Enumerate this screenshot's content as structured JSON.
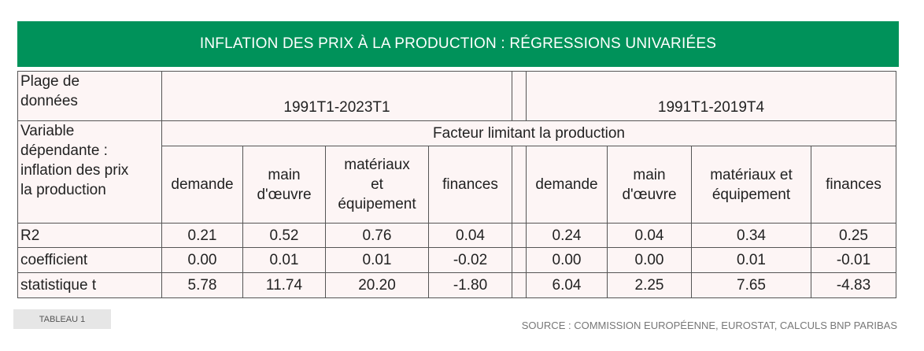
{
  "title": "INFLATION DES PRIX À LA PRODUCTION : RÉGRESSIONS UNIVARIÉES",
  "header": {
    "range_label": [
      "Plage de",
      "données"
    ],
    "range_1": "1991T1-2023T1",
    "range_2": "1991T1-2019T4",
    "dep_label": [
      "Variable",
      "dépendante :",
      "inflation des prix",
      "la production"
    ],
    "factor_group": "Facteur limitant la production",
    "cols_1": [
      [
        "demande"
      ],
      [
        "main",
        "d'œuvre"
      ],
      [
        "matériaux",
        "et",
        "équipement"
      ],
      [
        "finances"
      ]
    ],
    "cols_2": [
      [
        "demande"
      ],
      [
        "main",
        "d'œuvre"
      ],
      [
        "matériaux et",
        "équipement"
      ],
      [
        "finances"
      ]
    ]
  },
  "rows": [
    {
      "label": "R2",
      "v1": [
        "0.21",
        "0.52",
        "0.76",
        "0.04"
      ],
      "v2": [
        "0.24",
        "0.04",
        "0.34",
        "0.25"
      ]
    },
    {
      "label": "coefficient",
      "v1": [
        "0.00",
        "0.01",
        "0.01",
        "-0.02"
      ],
      "v2": [
        "0.00",
        "0.00",
        "0.01",
        "-0.01"
      ]
    },
    {
      "label": "statistique t",
      "v1": [
        "5.78",
        "11.74",
        "20.20",
        "-1.80"
      ],
      "v2": [
        "6.04",
        "2.25",
        "7.65",
        "-4.83"
      ]
    }
  ],
  "footer": {
    "tag": "TABLEAU 1",
    "source": "SOURCE : COMMISSION EUROPÉENNE, EUROSTAT, CALCULS BNP PARIBAS"
  }
}
